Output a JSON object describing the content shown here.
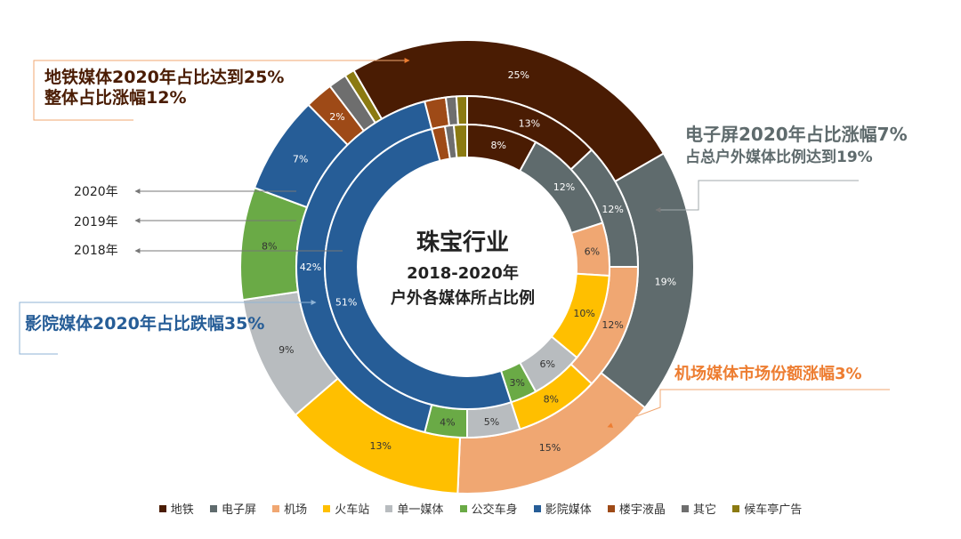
{
  "chart_data": {
    "type": "pie",
    "subtype": "multi-ring donut",
    "title_lines": [
      "珠宝行业",
      "2018-2020年",
      "户外各媒体所占比例"
    ],
    "categories": [
      "地铁",
      "电子屏",
      "机场",
      "火车站",
      "单一媒体",
      "公交车身",
      "影院媒体",
      "楼宇液晶",
      "其它",
      "候车亭广告"
    ],
    "colors": [
      "#4a1c03",
      "#5f6b6d",
      "#f0a772",
      "#ffbf00",
      "#b8bcbf",
      "#6aaa46",
      "#265d97",
      "#9e4a17",
      "#6e6e6e",
      "#8b7a11"
    ],
    "series": [
      {
        "name": "2020年",
        "values": [
          25,
          19,
          15,
          13,
          9,
          8,
          7,
          2,
          1.3,
          0.7
        ],
        "labels": [
          "25%",
          "19%",
          "15%",
          "13%",
          "9%",
          "8%",
          "7%",
          "2%",
          "",
          ""
        ]
      },
      {
        "name": "2019年",
        "values": [
          13,
          12,
          12,
          8,
          5,
          4,
          42,
          2,
          1,
          1
        ],
        "labels": [
          "13%",
          "12%",
          "12%",
          "8%",
          "5%",
          "4%",
          "42%",
          "",
          "",
          ""
        ]
      },
      {
        "name": "2018年",
        "values": [
          8,
          12,
          6,
          10,
          6,
          3,
          51,
          1.5,
          1,
          1.5
        ],
        "labels": [
          "8%",
          "12%",
          "6%",
          "10%",
          "6%",
          "3%",
          "51%",
          "",
          "",
          ""
        ]
      }
    ],
    "legend_position": "bottom"
  },
  "year_labels": [
    "2020年",
    "2019年",
    "2018年"
  ],
  "annotations": {
    "metro": {
      "lines": [
        "地铁媒体2020年占比达到25%",
        "整体占比涨幅12%"
      ],
      "color": "#4a1c03"
    },
    "screen": {
      "lines": [
        "电子屏2020年占比涨幅7%",
        "占总户外媒体比例达到19%"
      ],
      "color": "#5f6b6d"
    },
    "cinema": {
      "lines": [
        "影院媒体2020年占比跌幅35%"
      ],
      "color": "#265d97"
    },
    "airport": {
      "lines": [
        "机场媒体市场份额涨幅3%"
      ],
      "color": "#ed7d31"
    }
  }
}
